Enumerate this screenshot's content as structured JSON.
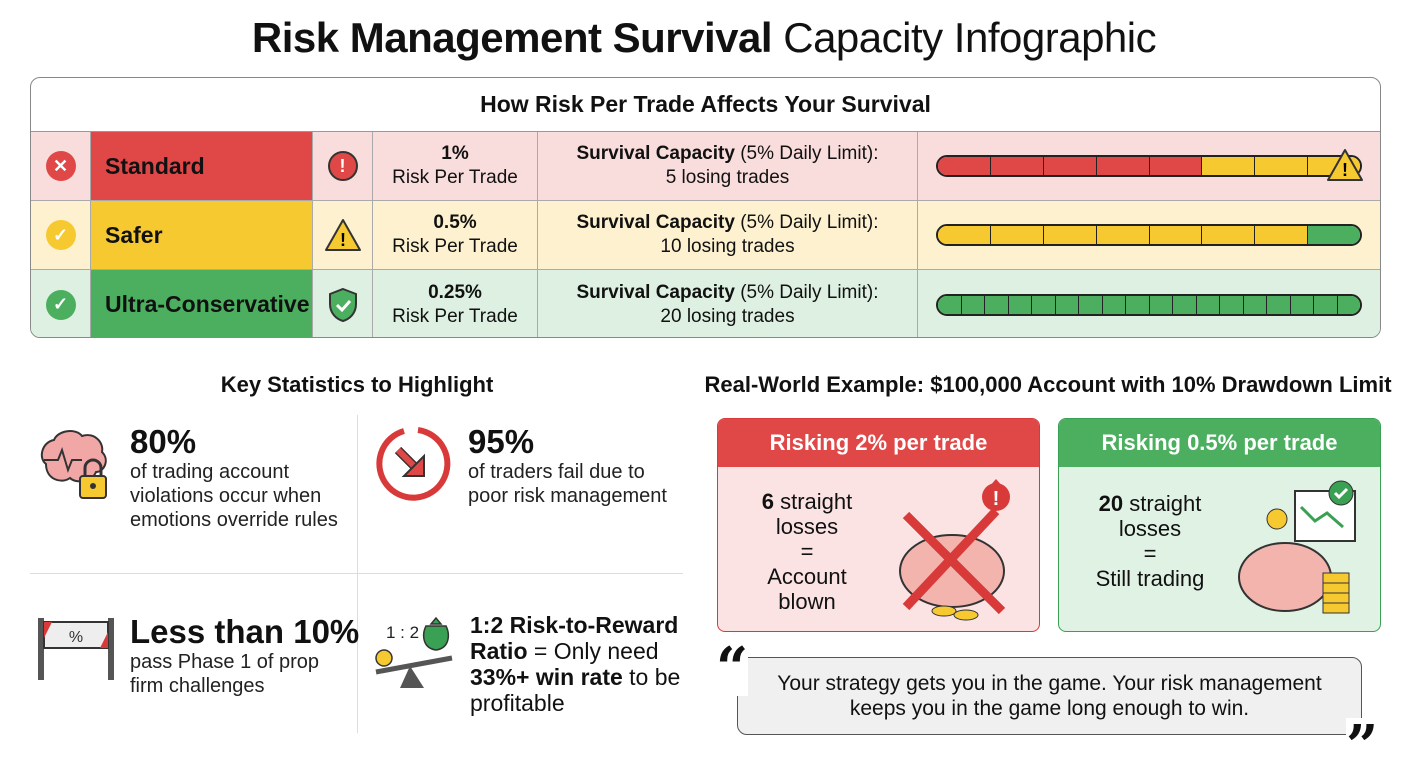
{
  "title": {
    "bold": "Risk Management Survival",
    "normal": "Capacity Infographic"
  },
  "table": {
    "header": "How Risk Per Trade Affects Your Survival",
    "rows": [
      {
        "label": "Standard",
        "risk": "1%",
        "risk_label": "Risk Per Trade",
        "survival_title": "Survival Capacity",
        "survival_limit": "(5% Daily Limit):",
        "survival_value": "5 losing trades",
        "status_icon": "x-circle-icon",
        "alert_icon": "exclamation-circle-icon",
        "bar": {
          "red": 5,
          "yellow": 3,
          "green": 0
        },
        "color": "#e04848",
        "bg": "#f9dcdc"
      },
      {
        "label": "Safer",
        "risk": "0.5%",
        "risk_label": "Risk Per Trade",
        "survival_title": "Survival Capacity",
        "survival_limit": "(5% Daily Limit):",
        "survival_value": "10 losing trades",
        "status_icon": "check-circle-icon",
        "alert_icon": "warning-triangle-icon",
        "bar": {
          "red": 0,
          "yellow": 7,
          "green": 1
        },
        "color": "#f7c931",
        "bg": "#fdf1cf"
      },
      {
        "label": "Ultra-Conservative",
        "risk": "0.25%",
        "risk_label": "Risk Per Trade",
        "survival_title": "Survival Capacity",
        "survival_limit": "(5% Daily Limit):",
        "survival_value": "20 losing trades",
        "status_icon": "check-circle-icon",
        "alert_icon": "shield-check-icon",
        "bar": {
          "red": 0,
          "yellow": 0,
          "green": 18
        },
        "color": "#4caf5f",
        "bg": "#ddf0e1"
      }
    ]
  },
  "stats": {
    "heading": "Key Statistics to Highlight",
    "items": [
      {
        "big": "80%",
        "text": "of trading account violations occur when emotions override rules",
        "icon": "brain-lock-icon"
      },
      {
        "big": "95%",
        "text": "of traders fail due to poor risk management",
        "icon": "downward-arrow-circle-icon"
      },
      {
        "big": "Less than 10%",
        "text": "pass Phase 1 of prop firm challenges",
        "icon": "percent-banner-icon"
      },
      {
        "big": "1:2 Risk-to-Reward",
        "bold2": "Ratio",
        "text_a": "= Only need",
        "bold3": "33%+ win rate",
        "text_b": "to be profitable",
        "ratio_label": "1 : 2",
        "icon": "scale-money-icon"
      }
    ]
  },
  "example": {
    "heading": "Real-World Example: $100,000 Account with 10% Drawdown Limit",
    "cards": [
      {
        "header": "Risking 2% per trade",
        "n": "6",
        "l1": "straight",
        "l2": "losses",
        "eq": "=",
        "r1": "Account",
        "r2": "blown",
        "icon": "broken-piggy-bank-icon"
      },
      {
        "header": "Risking 0.5% per trade",
        "n": "20",
        "l1": "straight",
        "l2": "losses",
        "eq": "=",
        "r1": "Still trading",
        "r2": "",
        "icon": "piggy-bank-coins-icon"
      }
    ]
  },
  "quote": {
    "text": "Your strategy gets you in the game. Your risk management keeps you in the game long enough to win.",
    "open": "“",
    "close": "”"
  }
}
